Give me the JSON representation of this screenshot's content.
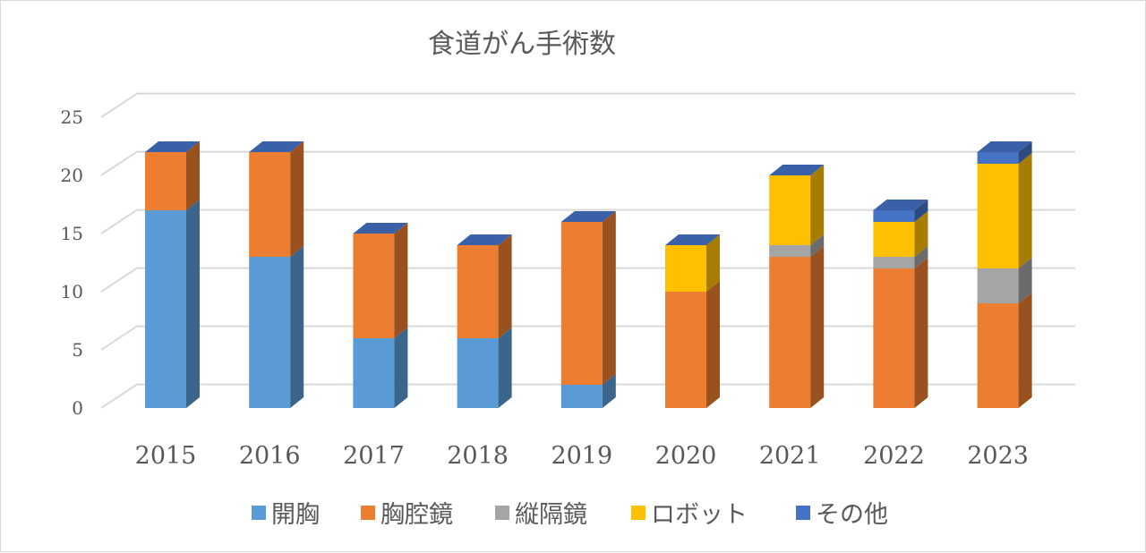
{
  "chart_data": {
    "type": "bar",
    "stacked": true,
    "title": "食道がん手術数",
    "categories": [
      "2015",
      "2016",
      "2017",
      "2018",
      "2019",
      "2020",
      "2021",
      "2022",
      "2023"
    ],
    "ylim": [
      0,
      25
    ],
    "yticks": [
      "0",
      "5",
      "10",
      "15",
      "20",
      "25"
    ],
    "grid": true,
    "legend_position": "bottom",
    "series": [
      {
        "name": "開胸",
        "color": "#5b9bd5",
        "values": [
          17,
          13,
          6,
          6,
          2,
          0,
          0,
          0,
          0
        ]
      },
      {
        "name": "胸腔鏡",
        "color": "#ed7d31",
        "values": [
          5,
          9,
          9,
          8,
          14,
          10,
          13,
          12,
          9
        ]
      },
      {
        "name": "縦隔鏡",
        "color": "#a5a5a5",
        "values": [
          0,
          0,
          0,
          0,
          0,
          0,
          1,
          1,
          3
        ]
      },
      {
        "name": "ロボット",
        "color": "#ffc000",
        "values": [
          0,
          0,
          0,
          0,
          0,
          4,
          6,
          3,
          9
        ]
      },
      {
        "name": "その他",
        "color": "#4472c4",
        "values": [
          0,
          0,
          0,
          0,
          0,
          0,
          0,
          1,
          1
        ]
      }
    ]
  }
}
